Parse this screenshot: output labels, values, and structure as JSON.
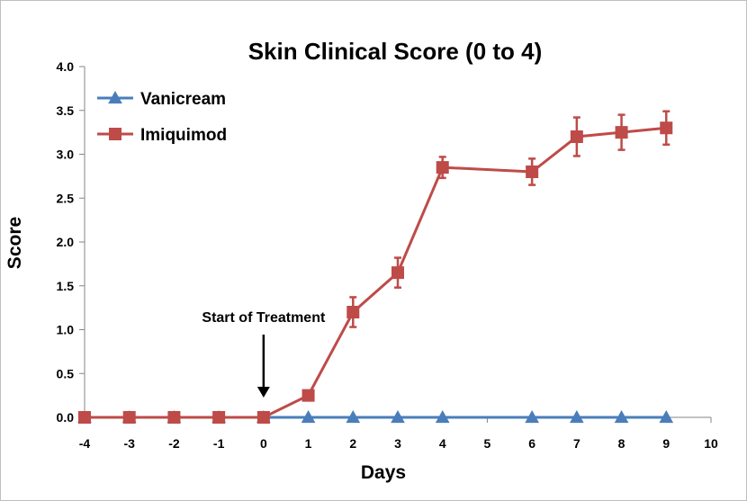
{
  "chart_data": {
    "type": "line",
    "title": "Skin Clinical Score (0 to 4)",
    "xlabel": "Days",
    "ylabel": "Score",
    "xlim": [
      -4,
      10
    ],
    "ylim": [
      0,
      4
    ],
    "x_ticks": [
      -4,
      -3,
      -2,
      -1,
      0,
      1,
      2,
      3,
      4,
      5,
      6,
      7,
      8,
      9,
      10
    ],
    "y_ticks": [
      "0.0",
      "0.5",
      "1.0",
      "1.5",
      "2.0",
      "2.5",
      "3.0",
      "3.5",
      "4.0"
    ],
    "grid": false,
    "legend_position": "top-left",
    "series": [
      {
        "name": "Vanicream",
        "color": "#4a7ebb",
        "marker": "triangle",
        "x": [
          -4,
          -3,
          -2,
          -1,
          0,
          1,
          2,
          3,
          4,
          6,
          7,
          8,
          9
        ],
        "y": [
          0,
          0,
          0,
          0,
          0,
          0,
          0,
          0,
          0,
          0,
          0,
          0,
          0
        ]
      },
      {
        "name": "Imiquimod",
        "color": "#be4b48",
        "marker": "square",
        "x": [
          -4,
          -3,
          -2,
          -1,
          0,
          1,
          2,
          3,
          4,
          6,
          7,
          8,
          9
        ],
        "y": [
          0,
          0,
          0,
          0,
          0,
          0.25,
          1.2,
          1.65,
          2.85,
          2.8,
          3.2,
          3.25,
          3.3
        ],
        "error": [
          0,
          0,
          0,
          0,
          0,
          0.05,
          0.17,
          0.17,
          0.12,
          0.15,
          0.22,
          0.2,
          0.19
        ]
      }
    ],
    "annotations": [
      {
        "text": "Start of Treatment",
        "x": 0,
        "arrow": "down"
      }
    ]
  }
}
